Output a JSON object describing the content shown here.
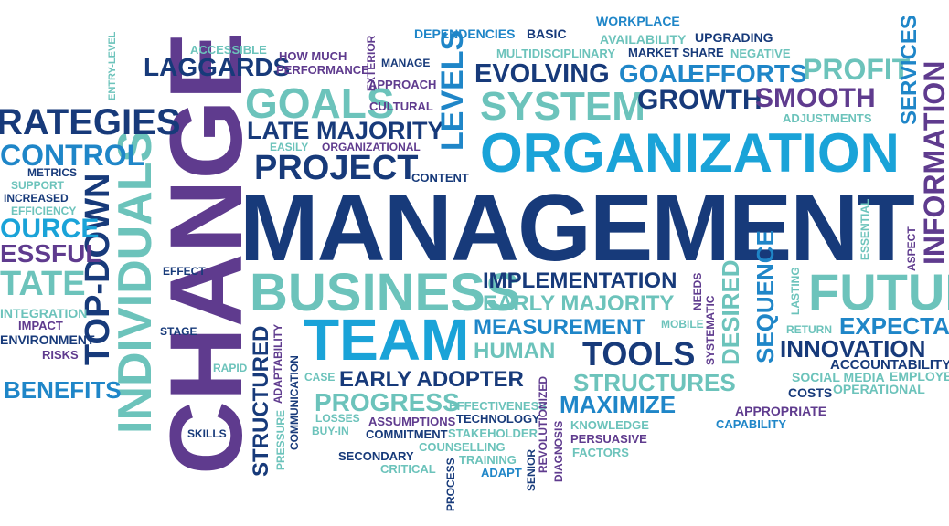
{
  "colors": {
    "navy": "#173a7a",
    "purple": "#5f3b8e",
    "cyan": "#1aa3d8",
    "teal": "#6cc3bb",
    "blue": "#1f86c8",
    "dark": "#2a2f5c",
    "background": "#ffffff"
  },
  "words": [
    "MANAGEMENT",
    "CHANGE",
    "ORGANIZATION",
    "INDIVIDUALS",
    "BUSINESS",
    "TEAM",
    "TOP-DOWN",
    "GOALS",
    "PROJECT",
    "SYSTEM",
    "LATE MAJORITY",
    "EVOLVING",
    "GOAL",
    "EFFORTS",
    "PROFIT",
    "GROWTH",
    "SMOOTH",
    "LAGGARDS",
    "RATEGIES",
    "CONTROL",
    "OURCE",
    "ESSFUL",
    "TATE",
    "BENEFITS",
    "INTEGRATION",
    "IMPACT",
    "ENVIRONMENT",
    "RISKS",
    "METRICS",
    "SUPPORT",
    "INCREASED",
    "EFFICIENCY",
    "ENTRY-LEVEL",
    "ACCESSIBLE",
    "HOW MUCH",
    "PERFORMANCE",
    "EXTERIOR",
    "MANAGE",
    "APPROACH",
    "CULTURAL",
    "ORGANIZATIONAL",
    "EASILY",
    "CONTENT",
    "LEVELS",
    "DEPENDENCIES",
    "BASIC",
    "WORKPLACE",
    "AVAILABILITY",
    "UPGRADING",
    "MULTIDISCIPLINARY",
    "MARKET SHARE",
    "NEGATIVE",
    "ADJUSTMENTS",
    "SERVICES",
    "INFORMATION",
    "FUTUR",
    "EXPECTA",
    "INNOVATION",
    "ACCOUNTABILITY",
    "EMPLOYEE",
    "SOCIAL MEDIA",
    "COSTS",
    "OPERATIONAL",
    "APPROPRIATE",
    "CAPABILITY",
    "ESSENTIAL",
    "ASPECT",
    "LASTING",
    "RETURN",
    "SEQUENCE",
    "DESIRED",
    "SYSTEMATIC",
    "NEEDS",
    "MOBILE",
    "IMPLEMENTATION",
    "EARLY MAJORITY",
    "MEASUREMENT",
    "HUMAN",
    "TOOLS",
    "STRUCTURES",
    "MAXIMIZE",
    "KNOWLEDGE",
    "PERSUASIVE",
    "FACTORS",
    "EARLY ADOPTER",
    "PROGRESS",
    "EFFECTIVENESS",
    "TECHNOLOGY",
    "ASSUMPTIONS",
    "COMMITMENT",
    "STAKEHOLDER",
    "COUNSELLING",
    "TRAINING",
    "ADAPT",
    "CRITICAL",
    "SECONDARY",
    "LOSSES",
    "BUY-IN",
    "CASE",
    "STRUCTURED",
    "ADAPTABILITY",
    "PRESSURE",
    "COMMUNICATION",
    "PROCESS",
    "SENIOR",
    "REVOLUTIONIZED",
    "DIAGNOSIS",
    "SKILLS",
    "RAPID",
    "STAGE",
    "EFFECT"
  ]
}
